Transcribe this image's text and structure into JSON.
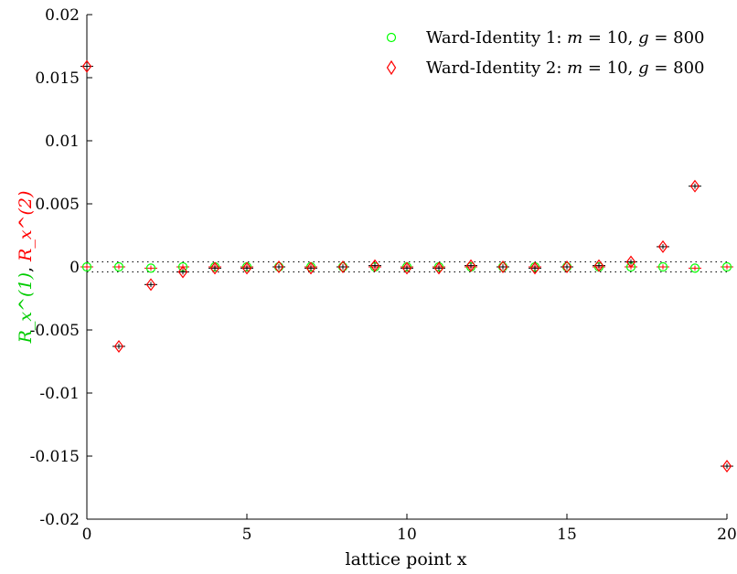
{
  "chart_data": {
    "type": "scatter",
    "xlabel": "lattice point x",
    "ylabel": {
      "part1": "R_x^(1)",
      "separator": ",",
      "part2": "R_x^(2)",
      "color1": "#00ff00",
      "color2": "#ff0000"
    },
    "xlim": [
      0,
      20
    ],
    "ylim": [
      -0.02,
      0.02
    ],
    "xticks": [
      0,
      5,
      10,
      15,
      20
    ],
    "xtick_labels": [
      "0",
      "5",
      "10",
      "15",
      "20"
    ],
    "yticks": [
      0.02,
      0.015,
      0.01,
      0.005,
      0,
      -0.005,
      -0.01,
      -0.015,
      -0.02
    ],
    "ytick_labels": [
      "0.02",
      "0.015",
      "0.01",
      "0.005",
      "0",
      "-0.005",
      "-0.01",
      "-0.015",
      "-0.02"
    ],
    "grid": false,
    "legend_position": "top-right",
    "reference_lines": {
      "style": "dotted",
      "color": "#000000",
      "y_values": [
        0.0004,
        -0.0004
      ]
    },
    "series": [
      {
        "name": "Ward-Identity 1: m = 10, g = 800",
        "legend": {
          "prefix": "Ward-Identity 1: ",
          "m": "10",
          "g": "800"
        },
        "marker": "circle",
        "color": "#00ff00",
        "errorbar_color": "#ff0000",
        "x": [
          0,
          1,
          2,
          3,
          4,
          5,
          6,
          7,
          8,
          9,
          10,
          11,
          12,
          13,
          14,
          15,
          16,
          17,
          18,
          19,
          20
        ],
        "y": [
          0,
          0,
          -0.0001,
          0,
          0,
          0,
          0,
          0,
          0,
          0,
          0,
          0,
          0,
          0,
          0,
          0,
          0,
          0,
          0,
          -0.0001,
          0
        ],
        "err": [
          0.0002,
          0.0002,
          0.0002,
          0.0002,
          0.0002,
          0.0002,
          0.0002,
          0.0002,
          0.0002,
          0.0002,
          0.0002,
          0.0002,
          0.0002,
          0.0002,
          0.0002,
          0.0002,
          0.0002,
          0.0002,
          0.0002,
          0.0002,
          0.0002
        ]
      },
      {
        "name": "Ward-Identity 2: m = 10, g = 800",
        "legend": {
          "prefix": "Ward-Identity 2: ",
          "m": "10",
          "g": "800"
        },
        "marker": "diamond",
        "color": "#ff0000",
        "errorbar_color": "#000000",
        "x": [
          0,
          1,
          2,
          3,
          4,
          5,
          6,
          7,
          8,
          9,
          10,
          11,
          12,
          13,
          14,
          15,
          16,
          17,
          18,
          19,
          20
        ],
        "y": [
          0.0159,
          -0.0063,
          -0.0014,
          -0.0004,
          -0.0001,
          -0.0001,
          0,
          -0.0001,
          0,
          0.0001,
          -0.0001,
          -0.0001,
          0.0001,
          0,
          -0.0001,
          0,
          0.0001,
          0.0004,
          0.0016,
          0.0064,
          -0.0158
        ],
        "err": [
          0.0002,
          0.0002,
          0.0002,
          0.0002,
          0.0002,
          0.0002,
          0.0002,
          0.0002,
          0.0002,
          0.0002,
          0.0002,
          0.0002,
          0.0002,
          0.0002,
          0.0002,
          0.0002,
          0.0002,
          0.0002,
          0.0002,
          0.0002,
          0.0002
        ]
      }
    ]
  }
}
